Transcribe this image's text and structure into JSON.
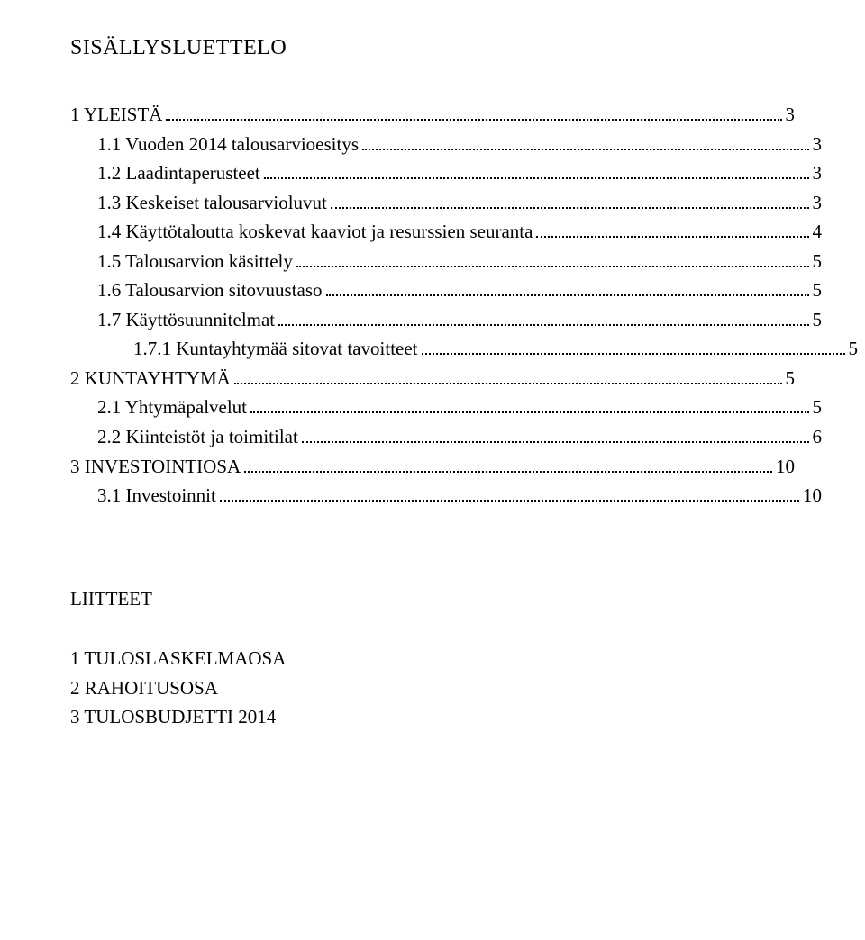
{
  "title": "SISÄLLYSLUETTELO",
  "toc": [
    {
      "label": "1 YLEISTÄ",
      "page": "3",
      "indent": 0
    },
    {
      "label": "1.1 Vuoden 2014 talousarvioesitys",
      "page": "3",
      "indent": 1
    },
    {
      "label": "1.2 Laadintaperusteet",
      "page": "3",
      "indent": 1
    },
    {
      "label": "1.3 Keskeiset talousarvioluvut",
      "page": "3",
      "indent": 1
    },
    {
      "label": "1.4 Käyttötaloutta koskevat kaaviot ja resurssien seuranta",
      "page": "4",
      "indent": 1
    },
    {
      "label": "1.5 Talousarvion käsittely",
      "page": "5",
      "indent": 1
    },
    {
      "label": "1.6 Talousarvion sitovuustaso",
      "page": "5",
      "indent": 1
    },
    {
      "label": "1.7 Käyttösuunnitelmat",
      "page": "5",
      "indent": 1
    },
    {
      "label": "1.7.1 Kuntayhtymää sitovat tavoitteet",
      "page": "5",
      "indent": 2
    },
    {
      "label": "2 KUNTAYHTYMÄ",
      "page": "5",
      "indent": 0
    },
    {
      "label": "2.1 Yhtymäpalvelut",
      "page": "5",
      "indent": 1
    },
    {
      "label": "2.2 Kiinteistöt ja toimitilat",
      "page": "6",
      "indent": 1
    },
    {
      "label": "3 INVESTOINTIOSA",
      "page": "10",
      "indent": 0
    },
    {
      "label": "3.1 Investoinnit",
      "page": "10",
      "indent": 1
    }
  ],
  "appendix": {
    "title": "LIITTEET",
    "items": [
      "1 TULOSLASKELMAOSA",
      "2 RAHOITUSOSA",
      "3 TULOSBUDJETTI 2014"
    ]
  }
}
